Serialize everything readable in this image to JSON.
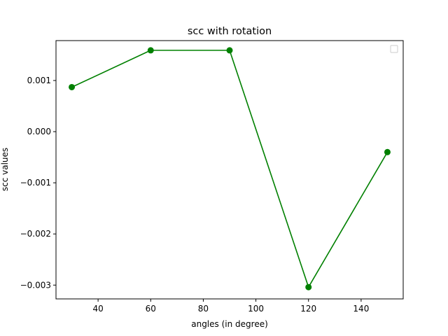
{
  "chart_data": {
    "type": "line",
    "title": "scc with rotation",
    "xlabel": "angles (in degree)",
    "ylabel": "scc values",
    "x": [
      30,
      60,
      90,
      120,
      150
    ],
    "series": [
      {
        "values": [
          0.00087,
          0.00159,
          0.00159,
          -0.00304,
          -0.0004
        ],
        "color": "#008000",
        "marker": "circle"
      }
    ],
    "xlim": [
      24,
      156
    ],
    "ylim": [
      -0.00327,
      0.00178
    ],
    "xticks": [
      40,
      60,
      80,
      100,
      120,
      140
    ],
    "xtick_labels": [
      "40",
      "60",
      "80",
      "100",
      "120",
      "140"
    ],
    "yticks": [
      0.001,
      0.0,
      -0.001,
      -0.002,
      -0.003
    ],
    "ytick_labels": [
      "0.001",
      "0.000",
      "−0.001",
      "−0.002",
      "−0.003"
    ],
    "grid": false,
    "legend": {
      "placement": "top-right",
      "entries": []
    }
  }
}
